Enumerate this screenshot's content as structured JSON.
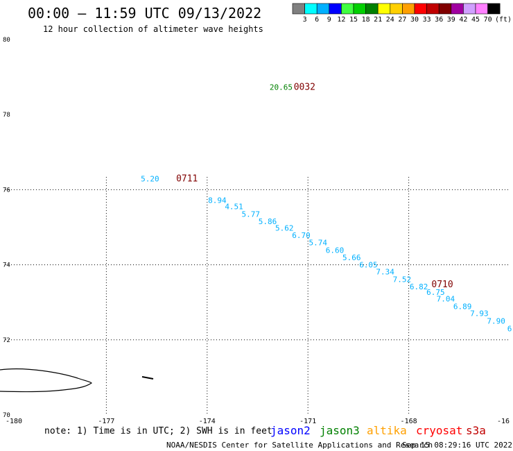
{
  "header": {
    "title": "00:00 – 11:59 UTC 09/13/2022",
    "subtitle": "12 hour collection of altimeter wave heights"
  },
  "colorbar": {
    "colors": [
      "#808080",
      "#00ffff",
      "#00b0ff",
      "#0000ff",
      "#40ff40",
      "#00d000",
      "#008000",
      "#ffff00",
      "#ffd000",
      "#ffa000",
      "#ff0000",
      "#c00000",
      "#800000",
      "#a000a0",
      "#d0a0ff",
      "#ff80ff",
      "#000000"
    ],
    "labels": [
      "3",
      "6",
      "9",
      "12",
      "15",
      "18",
      "21",
      "24",
      "27",
      "30",
      "33",
      "36",
      "39",
      "42",
      "45",
      "70"
    ],
    "unit": "(ft)"
  },
  "footer": {
    "note": "note: 1) Time is in UTC; 2) SWH is in feet",
    "satellites": [
      {
        "name": "jason2",
        "color": "#0000ff"
      },
      {
        "name": "jason3",
        "color": "#008000"
      },
      {
        "name": "altika",
        "color": "#ffa000"
      },
      {
        "name": "cryosat",
        "color": "#ff0000"
      },
      {
        "name": "s3a",
        "color": "#c00000"
      }
    ],
    "credit": "NOAA/NESDIS Center for Satellite Applications and Research",
    "timestamp": "Sep 15 08:29:16 UTC 2022"
  },
  "chart_data": {
    "type": "scatter",
    "xlim": [
      -180,
      -165
    ],
    "ylim": [
      70,
      80
    ],
    "x_ticks": [
      "-180",
      "-177",
      "-174",
      "-171",
      "-168",
      "-16"
    ],
    "y_tick_labels": [
      {
        "label": "80",
        "value": 80
      },
      {
        "label": "78",
        "value": 78
      },
      {
        "label": "76",
        "value": 76
      },
      {
        "label": "74",
        "value": 74
      },
      {
        "label": "72",
        "value": 72
      },
      {
        "label": "70",
        "value": 70
      }
    ],
    "gridlines_x": [
      -177,
      -174,
      -171,
      -168
    ],
    "gridlines_y": [
      72,
      74,
      76
    ],
    "grid": true,
    "points": [
      {
        "lon": -171.8,
        "lat": 78.66,
        "label": "20.65",
        "color": "#008000"
      },
      {
        "lon": -175.7,
        "lat": 76.22,
        "label": "5.20",
        "color": "#00b0ff"
      },
      {
        "lon": -173.7,
        "lat": 75.65,
        "label": "8.94",
        "color": "#00b0ff"
      },
      {
        "lon": -173.2,
        "lat": 75.48,
        "label": "4.51",
        "color": "#00b0ff"
      },
      {
        "lon": -172.7,
        "lat": 75.28,
        "label": "5.77",
        "color": "#00b0ff"
      },
      {
        "lon": -172.2,
        "lat": 75.08,
        "label": "5.86",
        "color": "#00b0ff"
      },
      {
        "lon": -171.7,
        "lat": 74.91,
        "label": "5.62",
        "color": "#00b0ff"
      },
      {
        "lon": -171.2,
        "lat": 74.71,
        "label": "6.70",
        "color": "#00b0ff"
      },
      {
        "lon": -170.7,
        "lat": 74.52,
        "label": "5.74",
        "color": "#00b0ff"
      },
      {
        "lon": -170.2,
        "lat": 74.32,
        "label": "6.60",
        "color": "#00b0ff"
      },
      {
        "lon": -169.7,
        "lat": 74.12,
        "label": "5.66",
        "color": "#00b0ff"
      },
      {
        "lon": -169.2,
        "lat": 73.93,
        "label": "6.05",
        "color": "#00b0ff"
      },
      {
        "lon": -168.7,
        "lat": 73.74,
        "label": "7.34",
        "color": "#00b0ff"
      },
      {
        "lon": -168.2,
        "lat": 73.54,
        "label": "7.52",
        "color": "#00b0ff"
      },
      {
        "lon": -167.7,
        "lat": 73.35,
        "label": "6.82",
        "color": "#00b0ff"
      },
      {
        "lon": -167.2,
        "lat": 73.2,
        "label": "6.75",
        "color": "#00b0ff"
      },
      {
        "lon": -166.9,
        "lat": 73.02,
        "label": "7.04",
        "color": "#00b0ff"
      },
      {
        "lon": -166.4,
        "lat": 72.82,
        "label": "6.89",
        "color": "#00b0ff"
      },
      {
        "lon": -165.9,
        "lat": 72.63,
        "label": "7.93",
        "color": "#00b0ff"
      },
      {
        "lon": -165.4,
        "lat": 72.43,
        "label": "7.90",
        "color": "#00b0ff"
      },
      {
        "lon": -165.0,
        "lat": 72.23,
        "label": "6",
        "color": "#00b0ff"
      }
    ],
    "time_labels": [
      {
        "lon": -171.1,
        "lat": 78.66,
        "label": "0032",
        "color": "#800000"
      },
      {
        "lon": -174.6,
        "lat": 76.22,
        "label": "0711",
        "color": "#800000"
      },
      {
        "lon": -167.0,
        "lat": 73.4,
        "label": "0710",
        "color": "#800000"
      }
    ]
  }
}
